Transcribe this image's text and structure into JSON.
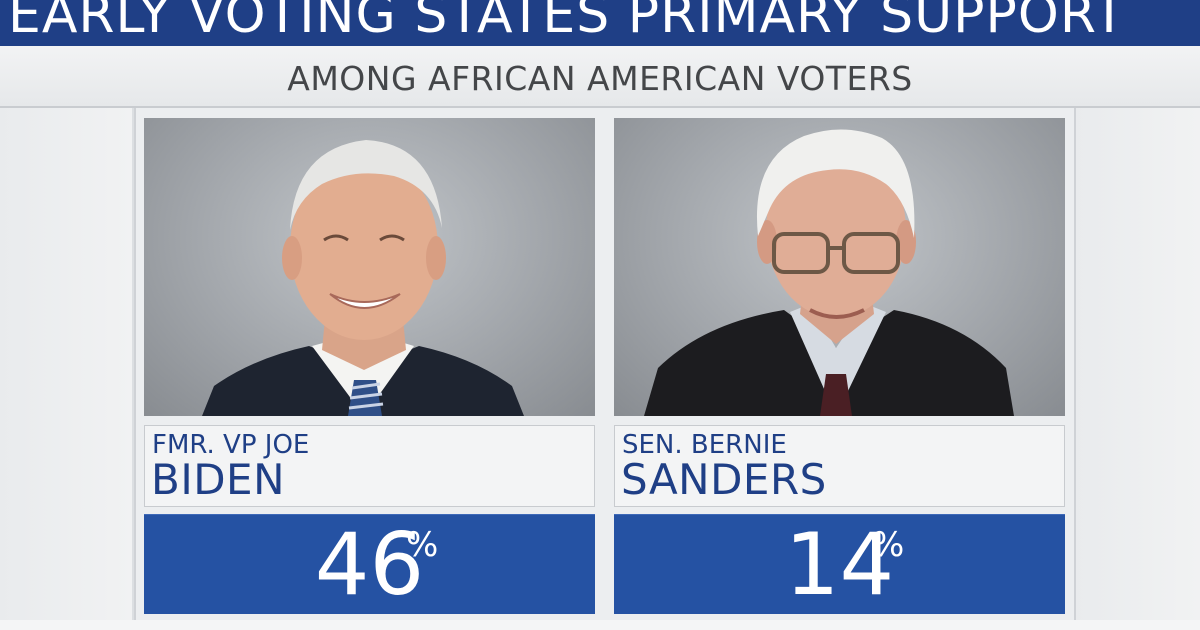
{
  "header": {
    "title": "EARLY VOTING STATES PRIMARY SUPPORT",
    "subtitle": "AMONG AFRICAN AMERICAN VOTERS"
  },
  "colors": {
    "banner_blue": "#1f3f86",
    "percent_blue": "#2552a3",
    "name_text": "#1f3f86",
    "panel_gray": "#eceef0"
  },
  "candidates": [
    {
      "title_line": "FMR. VP JOE",
      "surname": "BIDEN",
      "percent": "46",
      "percent_sign": "%",
      "percent_value": 46,
      "photo": "candidate-portrait-biden"
    },
    {
      "title_line": "SEN. BERNIE",
      "surname": "SANDERS",
      "percent": "14",
      "percent_sign": "%",
      "percent_value": 14,
      "photo": "candidate-portrait-sanders"
    }
  ]
}
